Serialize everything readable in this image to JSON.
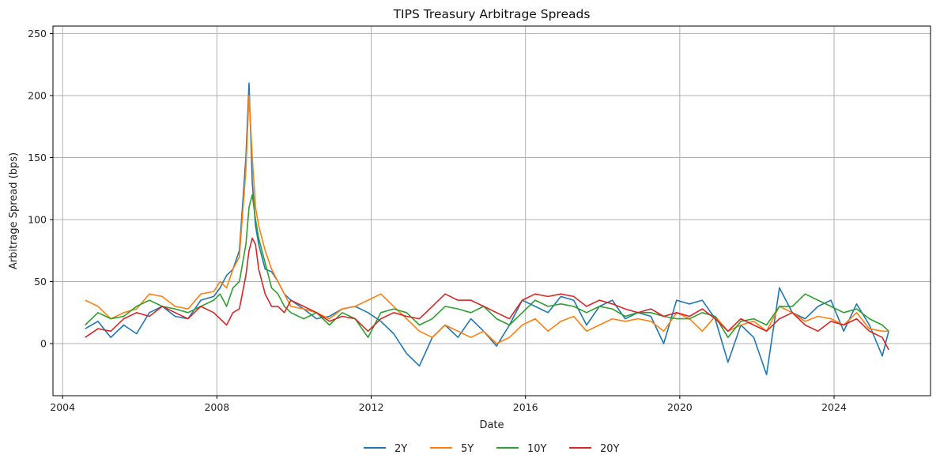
{
  "chart_data": {
    "type": "line",
    "title": "TIPS Treasury Arbitrage Spreads",
    "xlabel": "Date",
    "ylabel": "Arbitrage Spread (bps)",
    "xlim": [
      "2003-10",
      "2026-07"
    ],
    "ylim": [
      -42,
      256
    ],
    "x_ticks": [
      {
        "label": "2004",
        "value": 2004
      },
      {
        "label": "2008",
        "value": 2008
      },
      {
        "label": "2012",
        "value": 2012
      },
      {
        "label": "2016",
        "value": 2016
      },
      {
        "label": "2020",
        "value": 2020
      },
      {
        "label": "2024",
        "value": 2024
      }
    ],
    "y_ticks": [
      {
        "label": "0",
        "value": 0
      },
      {
        "label": "50",
        "value": 50
      },
      {
        "label": "100",
        "value": 100
      },
      {
        "label": "150",
        "value": 150
      },
      {
        "label": "200",
        "value": 200
      },
      {
        "label": "250",
        "value": 250
      }
    ],
    "grid": true,
    "legend": "bottom-center",
    "x": [
      "2004-08",
      "2004-12",
      "2005-04",
      "2005-08",
      "2005-12",
      "2006-04",
      "2006-08",
      "2006-12",
      "2007-04",
      "2007-08",
      "2007-12",
      "2008-02",
      "2008-04",
      "2008-06",
      "2008-08",
      "2008-10",
      "2008-11",
      "2008-12",
      "2009-01",
      "2009-02",
      "2009-04",
      "2009-06",
      "2009-08",
      "2009-10",
      "2009-12",
      "2010-04",
      "2010-08",
      "2010-12",
      "2011-04",
      "2011-08",
      "2011-12",
      "2012-04",
      "2012-08",
      "2012-12",
      "2013-04",
      "2013-08",
      "2013-12",
      "2014-04",
      "2014-08",
      "2014-12",
      "2015-04",
      "2015-08",
      "2015-12",
      "2016-04",
      "2016-08",
      "2016-12",
      "2017-04",
      "2017-08",
      "2017-12",
      "2018-04",
      "2018-08",
      "2018-12",
      "2019-04",
      "2019-08",
      "2019-12",
      "2020-04",
      "2020-08",
      "2020-12",
      "2021-04",
      "2021-08",
      "2021-12",
      "2022-04",
      "2022-08",
      "2022-12",
      "2023-04",
      "2023-08",
      "2023-12",
      "2024-04",
      "2024-08",
      "2024-12",
      "2025-04",
      "2025-06"
    ],
    "series": [
      {
        "name": "2Y",
        "color": "#1f77b4",
        "values": [
          12,
          18,
          5,
          15,
          8,
          25,
          30,
          22,
          20,
          35,
          38,
          45,
          55,
          60,
          75,
          150,
          210,
          130,
          95,
          80,
          60,
          58,
          50,
          40,
          35,
          28,
          20,
          22,
          28,
          30,
          25,
          18,
          8,
          -8,
          -18,
          5,
          15,
          5,
          20,
          10,
          -2,
          15,
          35,
          30,
          25,
          38,
          35,
          15,
          30,
          35,
          20,
          25,
          22,
          0,
          35,
          32,
          35,
          20,
          -15,
          15,
          5,
          -25,
          45,
          25,
          20,
          30,
          35,
          10,
          32,
          15,
          -10,
          10
        ]
      },
      {
        "name": "5Y",
        "color": "#ff7f0e",
        "values": [
          35,
          30,
          20,
          25,
          28,
          40,
          38,
          30,
          28,
          40,
          42,
          50,
          45,
          60,
          70,
          140,
          200,
          150,
          110,
          95,
          75,
          60,
          50,
          40,
          30,
          28,
          25,
          20,
          28,
          30,
          35,
          40,
          30,
          20,
          10,
          5,
          15,
          10,
          5,
          10,
          0,
          5,
          15,
          20,
          10,
          18,
          22,
          10,
          15,
          20,
          18,
          20,
          18,
          10,
          25,
          20,
          10,
          22,
          10,
          15,
          18,
          10,
          30,
          25,
          18,
          22,
          20,
          15,
          25,
          12,
          10,
          10
        ]
      },
      {
        "name": "10Y",
        "color": "#2ca02c",
        "values": [
          15,
          25,
          20,
          22,
          30,
          35,
          30,
          28,
          25,
          30,
          35,
          40,
          30,
          45,
          50,
          80,
          110,
          120,
          100,
          85,
          65,
          45,
          40,
          30,
          25,
          20,
          25,
          15,
          25,
          20,
          5,
          25,
          28,
          25,
          15,
          20,
          30,
          28,
          25,
          30,
          20,
          15,
          25,
          35,
          30,
          32,
          30,
          25,
          30,
          28,
          22,
          25,
          25,
          22,
          20,
          20,
          25,
          22,
          5,
          18,
          20,
          15,
          30,
          30,
          40,
          35,
          30,
          25,
          28,
          20,
          15,
          10
        ]
      },
      {
        "name": "20Y",
        "color": "#d62728",
        "values": [
          5,
          12,
          10,
          20,
          25,
          22,
          30,
          25,
          20,
          30,
          25,
          20,
          15,
          25,
          28,
          55,
          75,
          85,
          80,
          60,
          40,
          30,
          30,
          25,
          35,
          30,
          25,
          18,
          22,
          20,
          10,
          20,
          25,
          22,
          20,
          30,
          40,
          35,
          35,
          30,
          25,
          20,
          35,
          40,
          38,
          40,
          38,
          30,
          35,
          32,
          28,
          25,
          28,
          22,
          25,
          22,
          28,
          20,
          10,
          20,
          15,
          10,
          20,
          25,
          15,
          10,
          18,
          15,
          20,
          10,
          5,
          -5
        ]
      }
    ]
  }
}
